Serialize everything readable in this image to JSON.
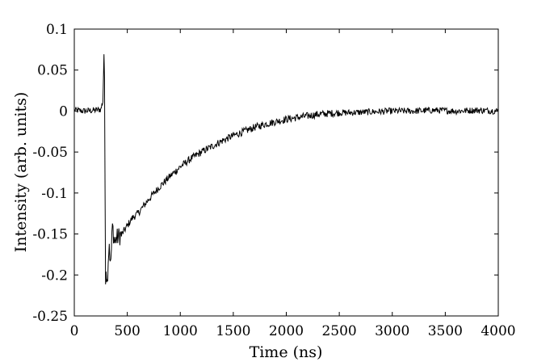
{
  "chart_data": {
    "type": "line",
    "title": "",
    "xlabel": "Time (ns)",
    "ylabel": "Intensity (arb. units)",
    "xlim": [
      0,
      4000
    ],
    "ylim": [
      -0.25,
      0.1
    ],
    "xticks": [
      0,
      500,
      1000,
      1500,
      2000,
      2500,
      3000,
      3500,
      4000
    ],
    "xtick_labels": [
      "0",
      "500",
      "1000",
      "1500",
      "2000",
      "2500",
      "3000",
      "3500",
      "4000"
    ],
    "yticks": [
      0.1,
      0.05,
      0,
      -0.05,
      -0.1,
      -0.15,
      -0.2,
      -0.25
    ],
    "ytick_labels": [
      "0.1",
      "0.05",
      "0",
      "-0.05",
      "-0.1",
      "-0.15",
      "-0.2",
      "-0.25"
    ],
    "grid": false,
    "legend": "none",
    "line_color": "#000000",
    "series": [
      {
        "x": [
          0,
          100,
          200,
          250,
          270,
          280,
          285,
          290,
          295,
          300,
          305,
          310,
          320,
          330,
          340,
          350,
          360,
          380,
          400,
          450,
          500,
          550,
          600,
          700,
          800,
          900,
          1000,
          1100,
          1200,
          1300,
          1400,
          1500,
          1600,
          1700,
          1800,
          1900,
          2000,
          2100,
          2200,
          2300,
          2400,
          2500,
          2600,
          2800,
          3000,
          3200,
          3400,
          3600,
          3800,
          4000
        ],
        "y": [
          0.001,
          0.0,
          0.001,
          0.002,
          0.012,
          0.07,
          0.03,
          -0.09,
          -0.2,
          -0.19,
          -0.2,
          -0.21,
          -0.18,
          -0.16,
          -0.19,
          -0.17,
          -0.14,
          -0.16,
          -0.155,
          -0.15,
          -0.14,
          -0.13,
          -0.125,
          -0.108,
          -0.093,
          -0.08,
          -0.068,
          -0.058,
          -0.05,
          -0.043,
          -0.036,
          -0.03,
          -0.025,
          -0.02,
          -0.016,
          -0.013,
          -0.01,
          -0.008,
          -0.006,
          -0.004,
          -0.003,
          -0.002,
          -0.002,
          -0.001,
          0.0,
          0.0,
          0.001,
          0.0,
          0.001,
          0.0
        ]
      }
    ]
  }
}
